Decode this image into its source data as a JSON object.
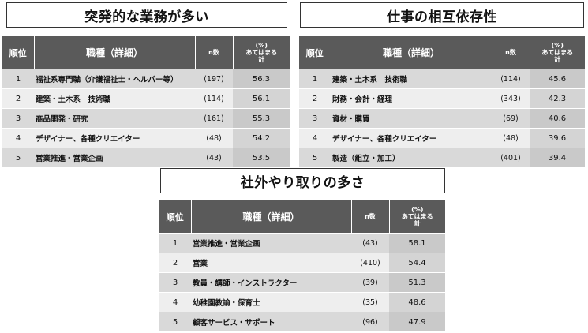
{
  "headers": {
    "rank": "順位",
    "job": "職種（詳細）",
    "n": "n数",
    "pct_line1": "(%)",
    "pct_line2": "あてはまる",
    "pct_line3": "計"
  },
  "panels": [
    {
      "title": "突発的な業務が多い",
      "rows": [
        {
          "rank": "1",
          "job": "福祉系専門職（介護福祉士・ヘルパー等）",
          "n": "(197)",
          "pct": "56.3"
        },
        {
          "rank": "2",
          "job": "建築・土木系　技術職",
          "n": "(114)",
          "pct": "56.1"
        },
        {
          "rank": "3",
          "job": "商品開発・研究",
          "n": "(161)",
          "pct": "55.3"
        },
        {
          "rank": "4",
          "job": "デザイナー、各種クリエイター",
          "n": "(48)",
          "pct": "54.2"
        },
        {
          "rank": "5",
          "job": "営業推進・営業企画",
          "n": "(43)",
          "pct": "53.5"
        }
      ]
    },
    {
      "title": "仕事の相互依存性",
      "rows": [
        {
          "rank": "1",
          "job": "建築・土木系　技術職",
          "n": "(114)",
          "pct": "45.6"
        },
        {
          "rank": "2",
          "job": "財務・会計・経理",
          "n": "(343)",
          "pct": "42.3"
        },
        {
          "rank": "3",
          "job": "資材・購買",
          "n": "(69)",
          "pct": "40.6"
        },
        {
          "rank": "4",
          "job": "デザイナー、各種クリエイター",
          "n": "(48)",
          "pct": "39.6"
        },
        {
          "rank": "5",
          "job": "製造（組立・加工）",
          "n": "(401)",
          "pct": "39.4"
        }
      ]
    },
    {
      "title": "社外やり取りの多さ",
      "rows": [
        {
          "rank": "1",
          "job": "営業推進・営業企画",
          "n": "(43)",
          "pct": "58.1"
        },
        {
          "rank": "2",
          "job": "営業",
          "n": "(410)",
          "pct": "54.4"
        },
        {
          "rank": "3",
          "job": "教員・講師・インストラクター",
          "n": "(39)",
          "pct": "51.3"
        },
        {
          "rank": "4",
          "job": "幼稚園教諭・保育士",
          "n": "(35)",
          "pct": "48.6"
        },
        {
          "rank": "5",
          "job": "顧客サービス・サポート",
          "n": "(96)",
          "pct": "47.9"
        }
      ]
    }
  ]
}
